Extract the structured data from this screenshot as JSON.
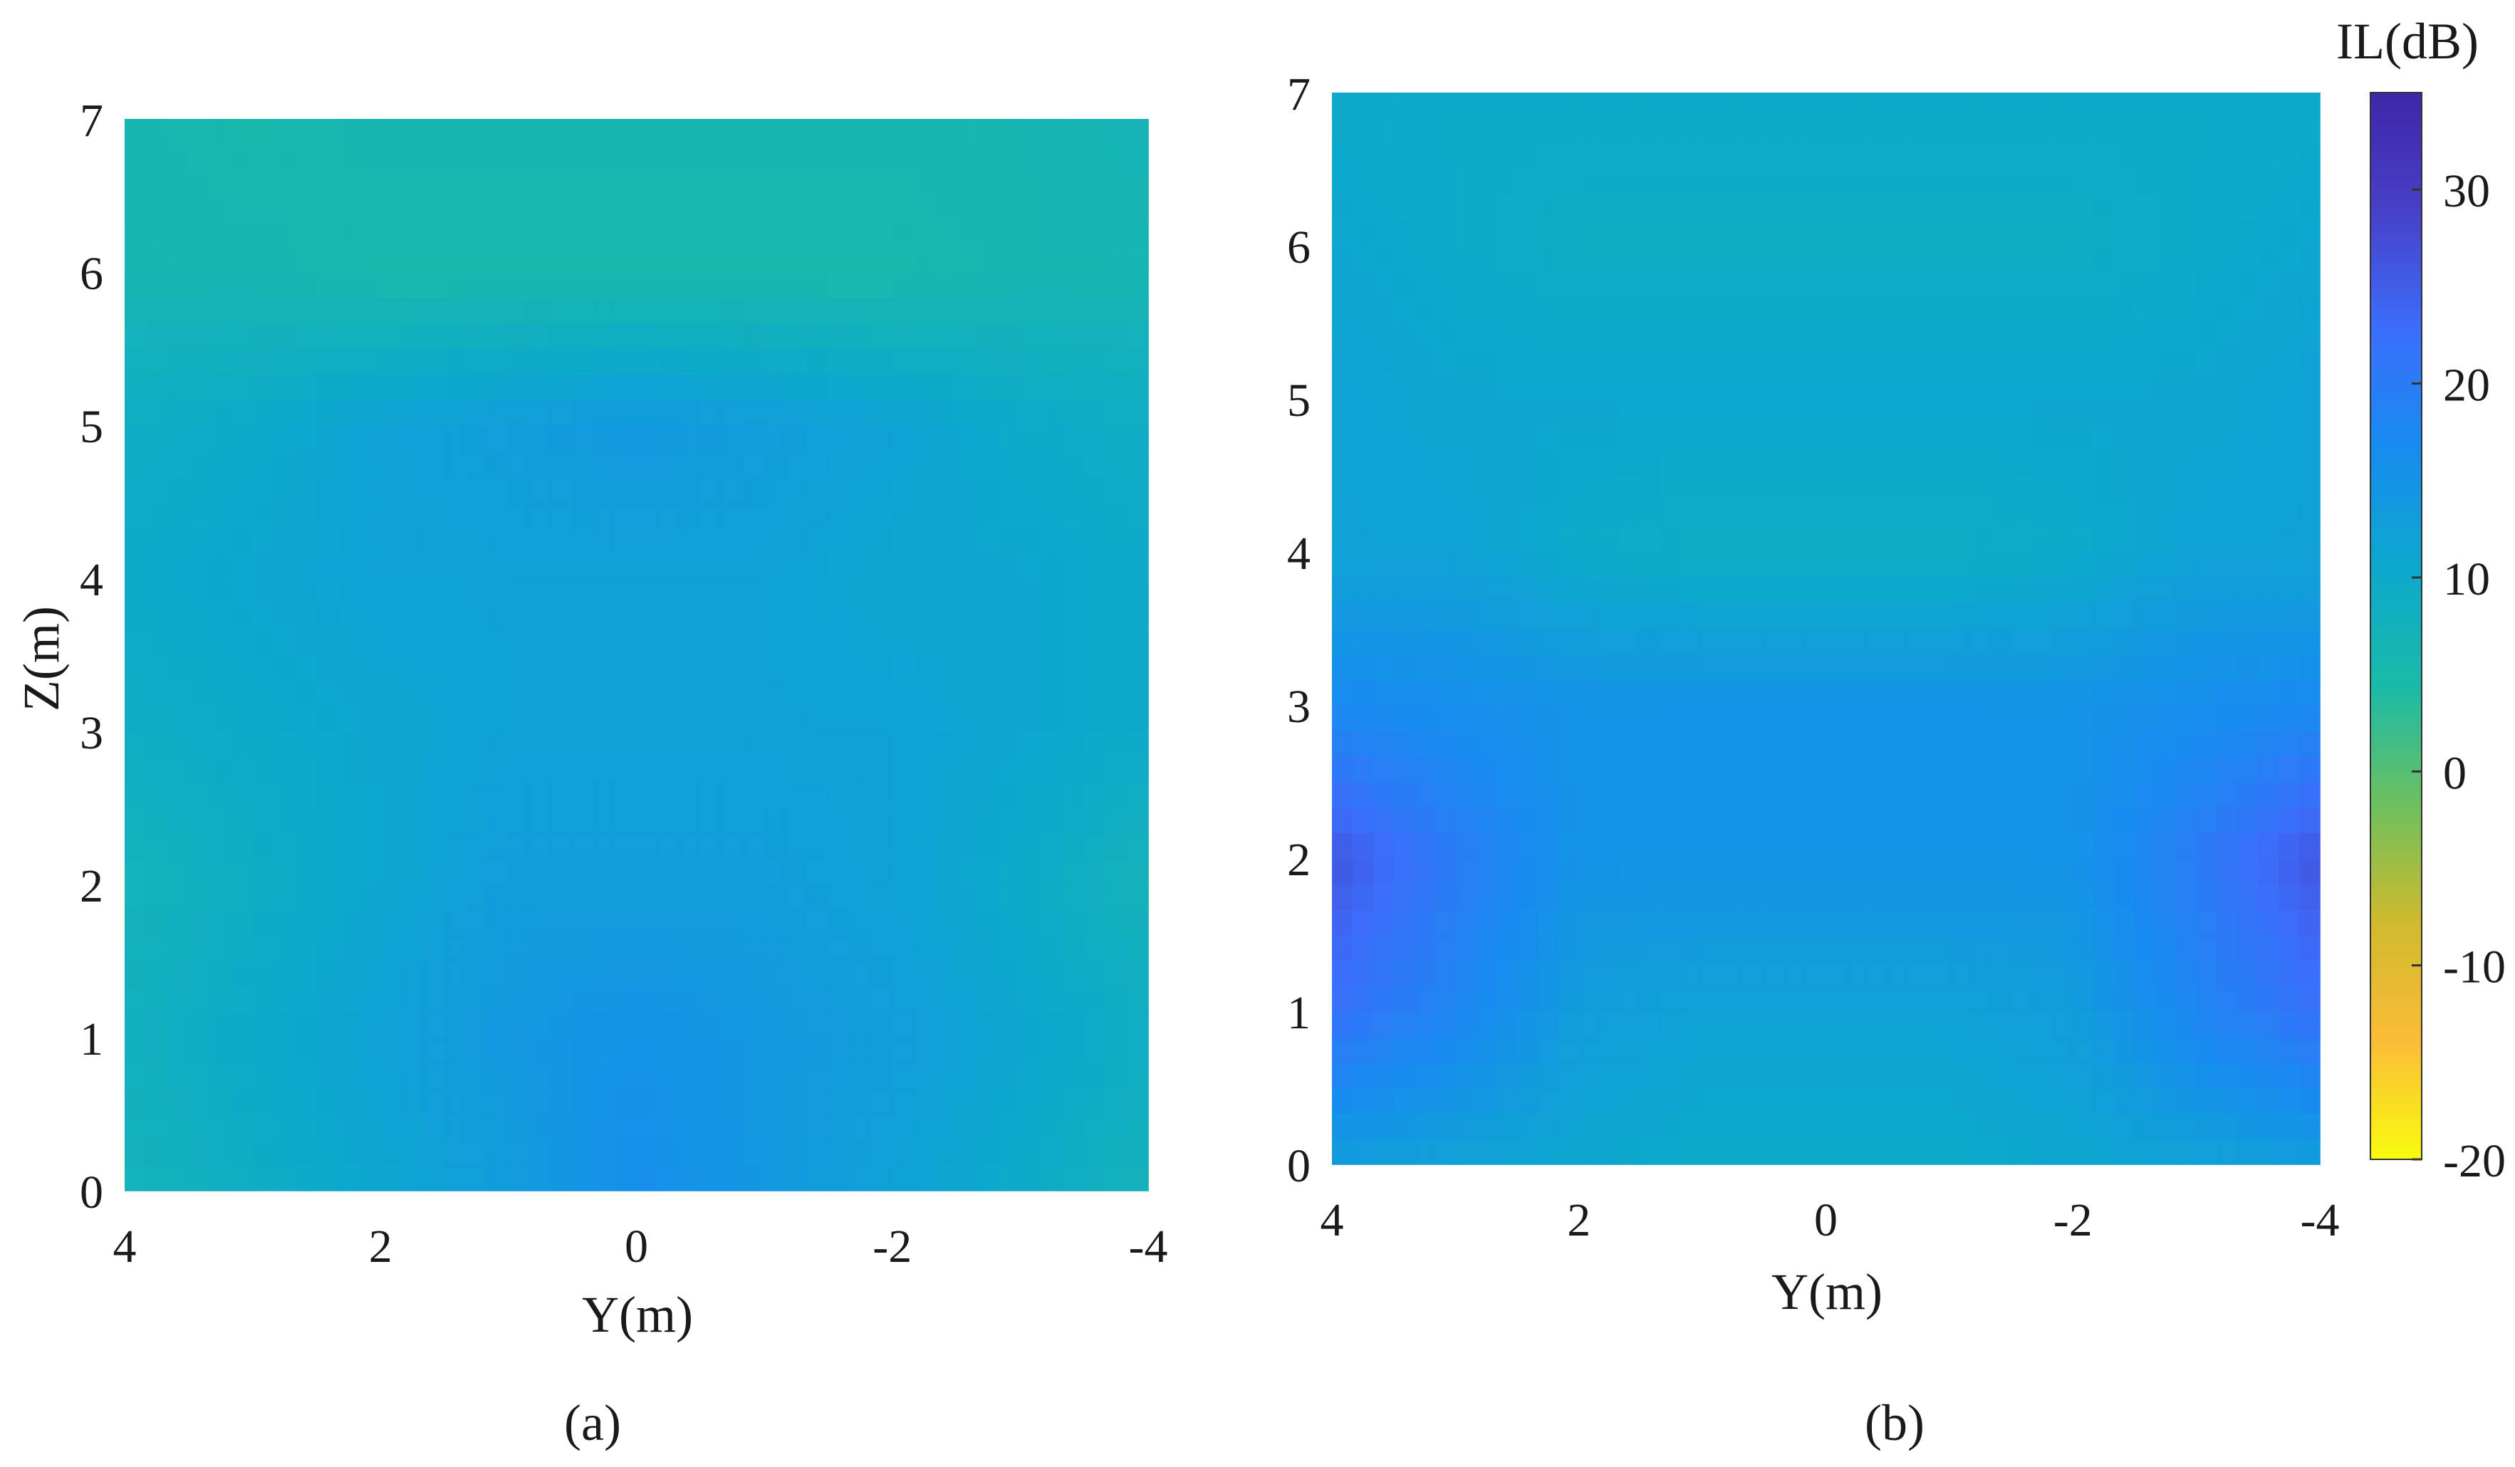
{
  "chart_data": [
    {
      "type": "heatmap",
      "panel_label": "(a)",
      "title": "",
      "xlabel": "Y(m)",
      "ylabel": "Z(m)",
      "xlim": [
        4,
        -4
      ],
      "ylim": [
        0,
        7
      ],
      "xticks": [
        "4",
        "2",
        "0",
        "-2",
        "-4"
      ],
      "yticks": [
        "0",
        "1",
        "2",
        "3",
        "4",
        "5",
        "6",
        "7"
      ],
      "x": [
        4,
        3,
        2,
        1,
        0,
        -1,
        -2,
        -3,
        -4
      ],
      "z": [
        0,
        1,
        2,
        3,
        4,
        5,
        6,
        7
      ],
      "values": [
        [
          7,
          9,
          11,
          13,
          16,
          14,
          12,
          10,
          7
        ],
        [
          8,
          10,
          12,
          14,
          15,
          14,
          13,
          11,
          9
        ],
        [
          7,
          9,
          11,
          13,
          13,
          13,
          12,
          10,
          7
        ],
        [
          9,
          10,
          11,
          12,
          12,
          12,
          12,
          11,
          10
        ],
        [
          10,
          11,
          12,
          12,
          12,
          12,
          11,
          11,
          10
        ],
        [
          9,
          10,
          12,
          13,
          14,
          13,
          12,
          10,
          9
        ],
        [
          6,
          6,
          5,
          5,
          5,
          5,
          5,
          6,
          6
        ],
        [
          6,
          5,
          6,
          6,
          6,
          6,
          6,
          6,
          7
        ]
      ]
    },
    {
      "type": "heatmap",
      "panel_label": "(b)",
      "title": "",
      "xlabel": "Y(m)",
      "ylabel": "",
      "xlim": [
        4,
        -4
      ],
      "ylim": [
        0,
        7
      ],
      "xticks": [
        "4",
        "2",
        "0",
        "-2",
        "-4"
      ],
      "yticks": [
        "0",
        "1",
        "2",
        "3",
        "4",
        "5",
        "6",
        "7"
      ],
      "x": [
        4,
        3,
        2,
        1,
        0,
        -1,
        -2,
        -3,
        -4
      ],
      "z": [
        0,
        1,
        2,
        3,
        4,
        5,
        6,
        7
      ],
      "values": [
        [
          13,
          12,
          11,
          10,
          10,
          10,
          11,
          12,
          13
        ],
        [
          22,
          18,
          13,
          12,
          12,
          12,
          13,
          18,
          22
        ],
        [
          26,
          20,
          15,
          15,
          15,
          15,
          15,
          20,
          26
        ],
        [
          17,
          16,
          15,
          15,
          15,
          15,
          15,
          16,
          17
        ],
        [
          12,
          12,
          10,
          9,
          9,
          9,
          10,
          12,
          12
        ],
        [
          12,
          11,
          11,
          11,
          11,
          11,
          11,
          11,
          12
        ],
        [
          11,
          10,
          9,
          9,
          9,
          9,
          9,
          10,
          11
        ],
        [
          10,
          10,
          10,
          10,
          10,
          10,
          10,
          10,
          10
        ]
      ]
    }
  ],
  "colorbar": {
    "label": "IL(dB)",
    "min": -20,
    "max": 35,
    "ticks": [
      "30",
      "20",
      "10",
      "0",
      "-10",
      "-20"
    ],
    "tick_values": [
      30,
      20,
      10,
      0,
      -10,
      -20
    ],
    "colormap": "parula",
    "colors": [
      "#f9fb0e",
      "#fbbc39",
      "#d0ba2d",
      "#6cc05f",
      "#1abaa9",
      "#0da8cd",
      "#178cf0",
      "#3b6efb",
      "#4840c8",
      "#3e26a8"
    ]
  }
}
